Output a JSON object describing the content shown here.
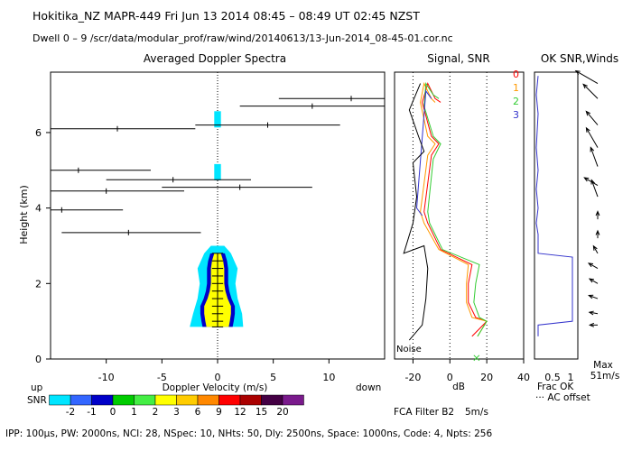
{
  "header": {
    "line1": "Hokitika_NZ   MAPR-449   Fri Jun 13 2014 08:45 – 08:49 UT 02:45 NZST",
    "line2": "Dwell   0 –   9    /scr/data/modular_prof/raw/wind/20140613/13-Jun-2014_08-45-01.cor.nc"
  },
  "footer": {
    "params": "IPP: 100μs,  PW: 2000ns,  NCI:  28,  NSpec: 10,  NHts: 50,  Dly: 2500ns,  Space: 1000ns,  Code: 4,  Npts: 256",
    "fca_filter": "FCA Filter B2",
    "wind_scale": "5m/s"
  },
  "colors": {
    "snr_scale": [
      "#00e5ff",
      "#3366ff",
      "#0000c8",
      "#00cc00",
      "#44ee44",
      "#ffff00",
      "#ffcc00",
      "#ff8800",
      "#ff0000",
      "#aa0000",
      "#440044",
      "#7a1a8c"
    ],
    "series": [
      "#ff0000",
      "#ff9900",
      "#33cc33",
      "#3333cc"
    ],
    "crosshair": "#000000"
  },
  "chart_data": [
    {
      "type": "heatmap",
      "title": "Averaged Doppler Spectra",
      "xlabel": "Doppler Velocity (m/s)",
      "ylabel": "Height (km)",
      "xlim": [
        -15,
        15
      ],
      "ylim": [
        0,
        7.6
      ],
      "xticks": [
        -10,
        -5,
        0,
        5,
        10
      ],
      "yticks": [
        0,
        2,
        4,
        6
      ],
      "extra_labels": {
        "up": "up",
        "down": "down"
      },
      "spectra_core": [
        {
          "height": 0.85,
          "v_min": -1.0,
          "v_max": 1.0
        },
        {
          "height": 1.0,
          "v_min": -1.1,
          "v_max": 1.1
        },
        {
          "height": 1.2,
          "v_min": -1.2,
          "v_max": 1.2
        },
        {
          "height": 1.4,
          "v_min": -1.2,
          "v_max": 1.2
        },
        {
          "height": 1.6,
          "v_min": -0.9,
          "v_max": 0.9
        },
        {
          "height": 1.8,
          "v_min": -0.7,
          "v_max": 0.7
        },
        {
          "height": 2.0,
          "v_min": -0.6,
          "v_max": 0.6
        },
        {
          "height": 2.2,
          "v_min": -0.6,
          "v_max": 0.6
        },
        {
          "height": 2.4,
          "v_min": -0.6,
          "v_max": 0.6
        },
        {
          "height": 2.6,
          "v_min": -0.5,
          "v_max": 0.5
        },
        {
          "height": 2.8,
          "v_min": -0.3,
          "v_max": 0.3
        }
      ],
      "spectra_halo": [
        {
          "height": 0.85,
          "v_min": -2.5,
          "v_max": 2.3
        },
        {
          "height": 1.2,
          "v_min": -2.2,
          "v_max": 2.2
        },
        {
          "height": 1.6,
          "v_min": -1.8,
          "v_max": 1.8
        },
        {
          "height": 2.0,
          "v_min": -1.6,
          "v_max": 1.6
        },
        {
          "height": 2.4,
          "v_min": -1.8,
          "v_max": 1.8
        },
        {
          "height": 2.8,
          "v_min": -1.2,
          "v_max": 1.2
        },
        {
          "height": 3.0,
          "v_min": -0.6,
          "v_max": 0.6
        }
      ],
      "isolated_echoes": [
        {
          "height": 4.95,
          "v_min": -0.3,
          "v_max": 0.3
        },
        {
          "height": 6.35,
          "v_min": -0.3,
          "v_max": 0.3
        }
      ],
      "moment_estimates": [
        {
          "height": 6.9,
          "v": 12,
          "v_lo": 5.5,
          "v_hi": 15
        },
        {
          "height": 6.7,
          "v": 8.5,
          "v_lo": 2,
          "v_hi": 15
        },
        {
          "height": 6.2,
          "v": 4.5,
          "v_lo": -2,
          "v_hi": 11
        },
        {
          "height": 6.1,
          "v": -9,
          "v_lo": -15,
          "v_hi": -2
        },
        {
          "height": 5.0,
          "v": -12.5,
          "v_lo": -15,
          "v_hi": -6
        },
        {
          "height": 4.75,
          "v": -4,
          "v_lo": -10,
          "v_hi": 3
        },
        {
          "height": 4.45,
          "v": -10,
          "v_lo": -15,
          "v_hi": -3
        },
        {
          "height": 4.55,
          "v": 2,
          "v_lo": -5,
          "v_hi": 8.5
        },
        {
          "height": 3.95,
          "v": -14,
          "v_lo": -15,
          "v_hi": -8.5
        },
        {
          "height": 3.35,
          "v": -8,
          "v_lo": -14,
          "v_hi": -1.5
        }
      ]
    },
    {
      "type": "line",
      "title": "Signal, SNR",
      "xlabel": "dB",
      "xlim": [
        -30,
        40
      ],
      "ylim": [
        0,
        7.6
      ],
      "xticks": [
        -20,
        0,
        20,
        40
      ],
      "annotations": [
        "Noise"
      ],
      "series": [
        {
          "name": "0",
          "points": [
            [
              -5,
              6.8
            ],
            [
              -8,
              6.9
            ],
            [
              -12,
              7.3
            ],
            [
              -15,
              6.8
            ],
            [
              -10,
              5.9
            ],
            [
              -6,
              5.7
            ],
            [
              -10,
              5.4
            ],
            [
              -14,
              3.9
            ],
            [
              -12,
              3.6
            ],
            [
              -5,
              2.9
            ],
            [
              12,
              2.5
            ],
            [
              10,
              2.0
            ],
            [
              10,
              1.5
            ],
            [
              14,
              1.1
            ],
            [
              20,
              1.0
            ],
            [
              12,
              0.6
            ]
          ]
        },
        {
          "name": "1",
          "points": [
            [
              -8,
              6.8
            ],
            [
              -10,
              6.9
            ],
            [
              -14,
              7.3
            ],
            [
              -16,
              6.8
            ],
            [
              -12,
              5.9
            ],
            [
              -8,
              5.7
            ],
            [
              -12,
              5.4
            ],
            [
              -16,
              3.9
            ],
            [
              -14,
              3.6
            ],
            [
              -6,
              2.9
            ],
            [
              10,
              2.5
            ],
            [
              9,
              2.0
            ],
            [
              9,
              1.5
            ],
            [
              12,
              1.1
            ],
            [
              20,
              1.0
            ],
            [
              15,
              0.6
            ]
          ]
        },
        {
          "name": "2",
          "points": [
            [
              -6,
              6.9
            ],
            [
              -9,
              7.0
            ],
            [
              -13,
              7.3
            ],
            [
              -14,
              6.7
            ],
            [
              -9,
              5.9
            ],
            [
              -5,
              5.7
            ],
            [
              -9,
              5.3
            ],
            [
              -12,
              3.9
            ],
            [
              -11,
              3.6
            ],
            [
              -4,
              2.9
            ],
            [
              16,
              2.5
            ],
            [
              14,
              2.0
            ],
            [
              13,
              1.5
            ],
            [
              16,
              1.1
            ],
            [
              20,
              1.0
            ],
            [
              15,
              0.6
            ]
          ]
        },
        {
          "name": "3",
          "points": [
            [
              -10,
              6.9
            ],
            [
              -13,
              7.1
            ],
            [
              -18,
              4.0
            ],
            [
              -15,
              3.8
            ]
          ]
        },
        {
          "name": "noise",
          "points": [
            [
              -22,
              0.5
            ],
            [
              -15,
              0.9
            ],
            [
              -13,
              1.6
            ],
            [
              -12,
              2.4
            ],
            [
              -14,
              3.0
            ],
            [
              -25,
              2.8
            ],
            [
              -20,
              3.6
            ],
            [
              -18,
              4.3
            ],
            [
              -20,
              5.2
            ],
            [
              -14,
              5.5
            ],
            [
              -17,
              5.9
            ],
            [
              -22,
              6.6
            ],
            [
              -16,
              7.3
            ]
          ]
        }
      ]
    },
    {
      "type": "line",
      "title": "OK SNR,Winds",
      "xlabel": "Frac OK",
      "xlim": [
        0,
        1.2
      ],
      "ylim": [
        0,
        7.6
      ],
      "xticks": [
        0.5,
        1
      ],
      "legend": [
        "0",
        "1",
        "2",
        "3"
      ],
      "annotations": [
        "··· AC offset",
        "Max",
        "51m/s"
      ],
      "series": [
        {
          "name": "frac_ok",
          "points": [
            [
              0.1,
              0.6
            ],
            [
              0.1,
              0.9
            ],
            [
              1.05,
              1.0
            ],
            [
              1.05,
              2.7
            ],
            [
              0.1,
              2.8
            ],
            [
              0.1,
              3.3
            ],
            [
              0.05,
              3.6
            ],
            [
              0.1,
              4.0
            ],
            [
              0.05,
              4.5
            ],
            [
              0.1,
              5.0
            ],
            [
              0.05,
              5.6
            ],
            [
              0.1,
              6.5
            ],
            [
              0.05,
              7.0
            ],
            [
              0.1,
              7.5
            ]
          ]
        }
      ],
      "wind_barbs": [
        {
          "height": 7.3,
          "dir_deg": 300,
          "speed": 40
        },
        {
          "height": 6.9,
          "dir_deg": 315,
          "speed": 30
        },
        {
          "height": 6.2,
          "dir_deg": 320,
          "speed": 25
        },
        {
          "height": 5.6,
          "dir_deg": 330,
          "speed": 35
        },
        {
          "height": 5.1,
          "dir_deg": 340,
          "speed": 30
        },
        {
          "height": 4.6,
          "dir_deg": 300,
          "speed": 20
        },
        {
          "height": 4.3,
          "dir_deg": 340,
          "speed": 25
        },
        {
          "height": 3.7,
          "dir_deg": 0,
          "speed": 5
        },
        {
          "height": 3.2,
          "dir_deg": 0,
          "speed": 4
        },
        {
          "height": 2.8,
          "dir_deg": 330,
          "speed": 6
        },
        {
          "height": 2.4,
          "dir_deg": 300,
          "speed": 10
        },
        {
          "height": 2.0,
          "dir_deg": 300,
          "speed": 8
        },
        {
          "height": 1.6,
          "dir_deg": 290,
          "speed": 8
        },
        {
          "height": 1.2,
          "dir_deg": 280,
          "speed": 6
        },
        {
          "height": 0.9,
          "dir_deg": 270,
          "speed": 5
        }
      ]
    },
    {
      "type": "table",
      "title": "SNR dB",
      "xlabel": "SNR dB",
      "categories": [
        "-2",
        "-1",
        "0",
        "1",
        "2",
        "3",
        "6",
        "9",
        "12",
        "15",
        "20"
      ]
    }
  ]
}
